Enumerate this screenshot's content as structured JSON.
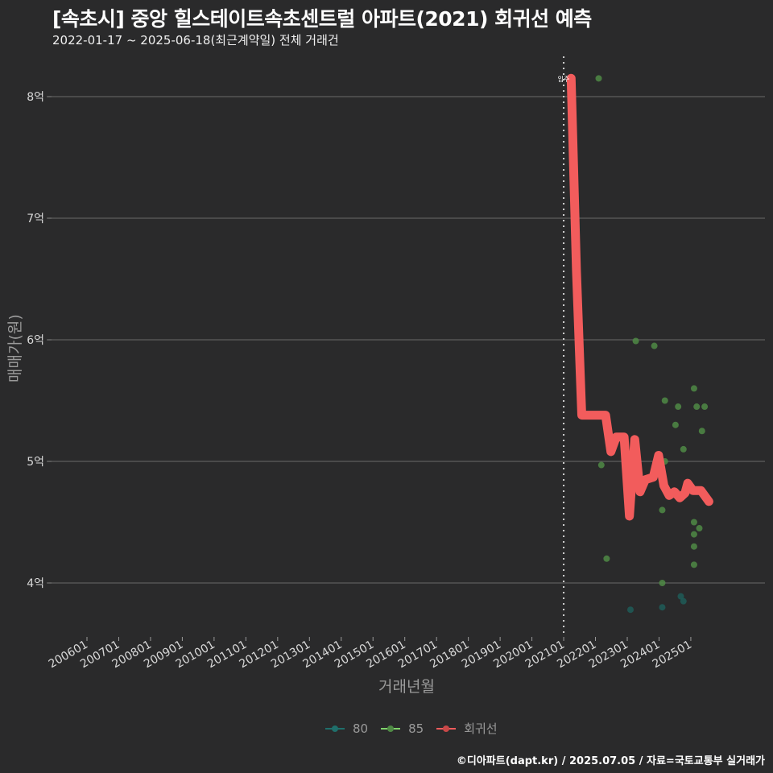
{
  "header": {
    "title": "[속초시] 중앙 힐스테이트속초센트럴 아파트(2021) 회귀선 예측",
    "subtitle": "2022-01-17 ~ 2025-06-18(최근계약일) 전체 거래건"
  },
  "axes": {
    "ylabel": "매매가(원)",
    "xlabel": "거래년월"
  },
  "legend": {
    "items": [
      {
        "label": "80",
        "color": "#1f6f6b"
      },
      {
        "label": "85",
        "color": "#7fd36b"
      },
      {
        "label": "회귀선",
        "color": "#f25c5c"
      }
    ]
  },
  "annotation": {
    "label": "입주"
  },
  "caption": "©디아파트(dapt.kr) / 2025.07.05 / 자료=국토교통부 실거래가",
  "chart_data": {
    "type": "scatter",
    "title": "[속초시] 중앙 힐스테이트속초센트럴 아파트(2021) 회귀선 예측",
    "subtitle": "2022-01-17 ~ 2025-06-18(최근계약일) 전체 거래건",
    "xlabel": "거래년월",
    "ylabel": "매매가(원)",
    "x_ticks": [
      "200601",
      "200701",
      "200801",
      "200901",
      "201001",
      "201101",
      "201201",
      "201301",
      "201401",
      "201501",
      "201601",
      "201701",
      "201801",
      "201901",
      "202001",
      "202101",
      "202201",
      "202301",
      "202401",
      "202501"
    ],
    "y_ticks": [
      "4억",
      "5억",
      "6억",
      "7억",
      "8억"
    ],
    "y_tick_values": [
      4,
      5,
      6,
      7,
      8
    ],
    "ylim": [
      3.6,
      8.3
    ],
    "unit": "억",
    "grid": "horizontal",
    "legend_position": "bottom",
    "vline": {
      "x": "202101",
      "label": "입주",
      "style": "dotted"
    },
    "series": [
      {
        "name": "80",
        "type": "scatter",
        "color": "#1f6f6b",
        "points": [
          {
            "x": "2023-01",
            "y": 3.78
          },
          {
            "x": "2024-01",
            "y": 3.8
          },
          {
            "x": "2024-08",
            "y": 3.89
          },
          {
            "x": "2024-09",
            "y": 3.85
          }
        ]
      },
      {
        "name": "85",
        "type": "scatter",
        "color": "#7fd36b",
        "points": [
          {
            "x": "2022-01",
            "y": 8.15
          },
          {
            "x": "2022-02",
            "y": 4.97
          },
          {
            "x": "2022-04",
            "y": 4.2
          },
          {
            "x": "2023-03",
            "y": 5.99
          },
          {
            "x": "2023-10",
            "y": 5.95
          },
          {
            "x": "2024-02",
            "y": 5.5
          },
          {
            "x": "2024-02",
            "y": 5.0
          },
          {
            "x": "2024-01",
            "y": 4.6
          },
          {
            "x": "2024-01",
            "y": 4.0
          },
          {
            "x": "2024-06",
            "y": 5.3
          },
          {
            "x": "2024-07",
            "y": 5.45
          },
          {
            "x": "2024-09",
            "y": 5.1
          },
          {
            "x": "2025-01",
            "y": 5.6
          },
          {
            "x": "2025-02",
            "y": 5.45
          },
          {
            "x": "2025-05",
            "y": 5.45
          },
          {
            "x": "2025-04",
            "y": 5.25
          },
          {
            "x": "2025-01",
            "y": 4.5
          },
          {
            "x": "2025-03",
            "y": 4.45
          },
          {
            "x": "2025-01",
            "y": 4.4
          },
          {
            "x": "2025-01",
            "y": 4.3
          },
          {
            "x": "2025-01",
            "y": 4.15
          }
        ]
      },
      {
        "name": "회귀선",
        "type": "line",
        "color": "#f25c5c",
        "points": [
          {
            "x": "2021-02",
            "y": 8.15
          },
          {
            "x": "2021-04",
            "y": 6.57
          },
          {
            "x": "2021-06",
            "y": 5.38
          },
          {
            "x": "2022-03",
            "y": 5.38
          },
          {
            "x": "2022-05",
            "y": 5.08
          },
          {
            "x": "2022-07",
            "y": 5.2
          },
          {
            "x": "2022-10",
            "y": 5.2
          },
          {
            "x": "2022-12",
            "y": 4.55
          },
          {
            "x": "2023-02",
            "y": 5.18
          },
          {
            "x": "2023-04",
            "y": 4.75
          },
          {
            "x": "2023-06",
            "y": 4.85
          },
          {
            "x": "2023-09",
            "y": 4.87
          },
          {
            "x": "2023-11",
            "y": 5.05
          },
          {
            "x": "2024-01",
            "y": 4.8
          },
          {
            "x": "2024-03",
            "y": 4.72
          },
          {
            "x": "2024-05",
            "y": 4.75
          },
          {
            "x": "2024-07",
            "y": 4.7
          },
          {
            "x": "2024-09",
            "y": 4.74
          },
          {
            "x": "2024-10",
            "y": 4.82
          },
          {
            "x": "2024-12",
            "y": 4.76
          },
          {
            "x": "2025-03",
            "y": 4.76
          },
          {
            "x": "2025-06",
            "y": 4.67
          }
        ]
      }
    ]
  }
}
